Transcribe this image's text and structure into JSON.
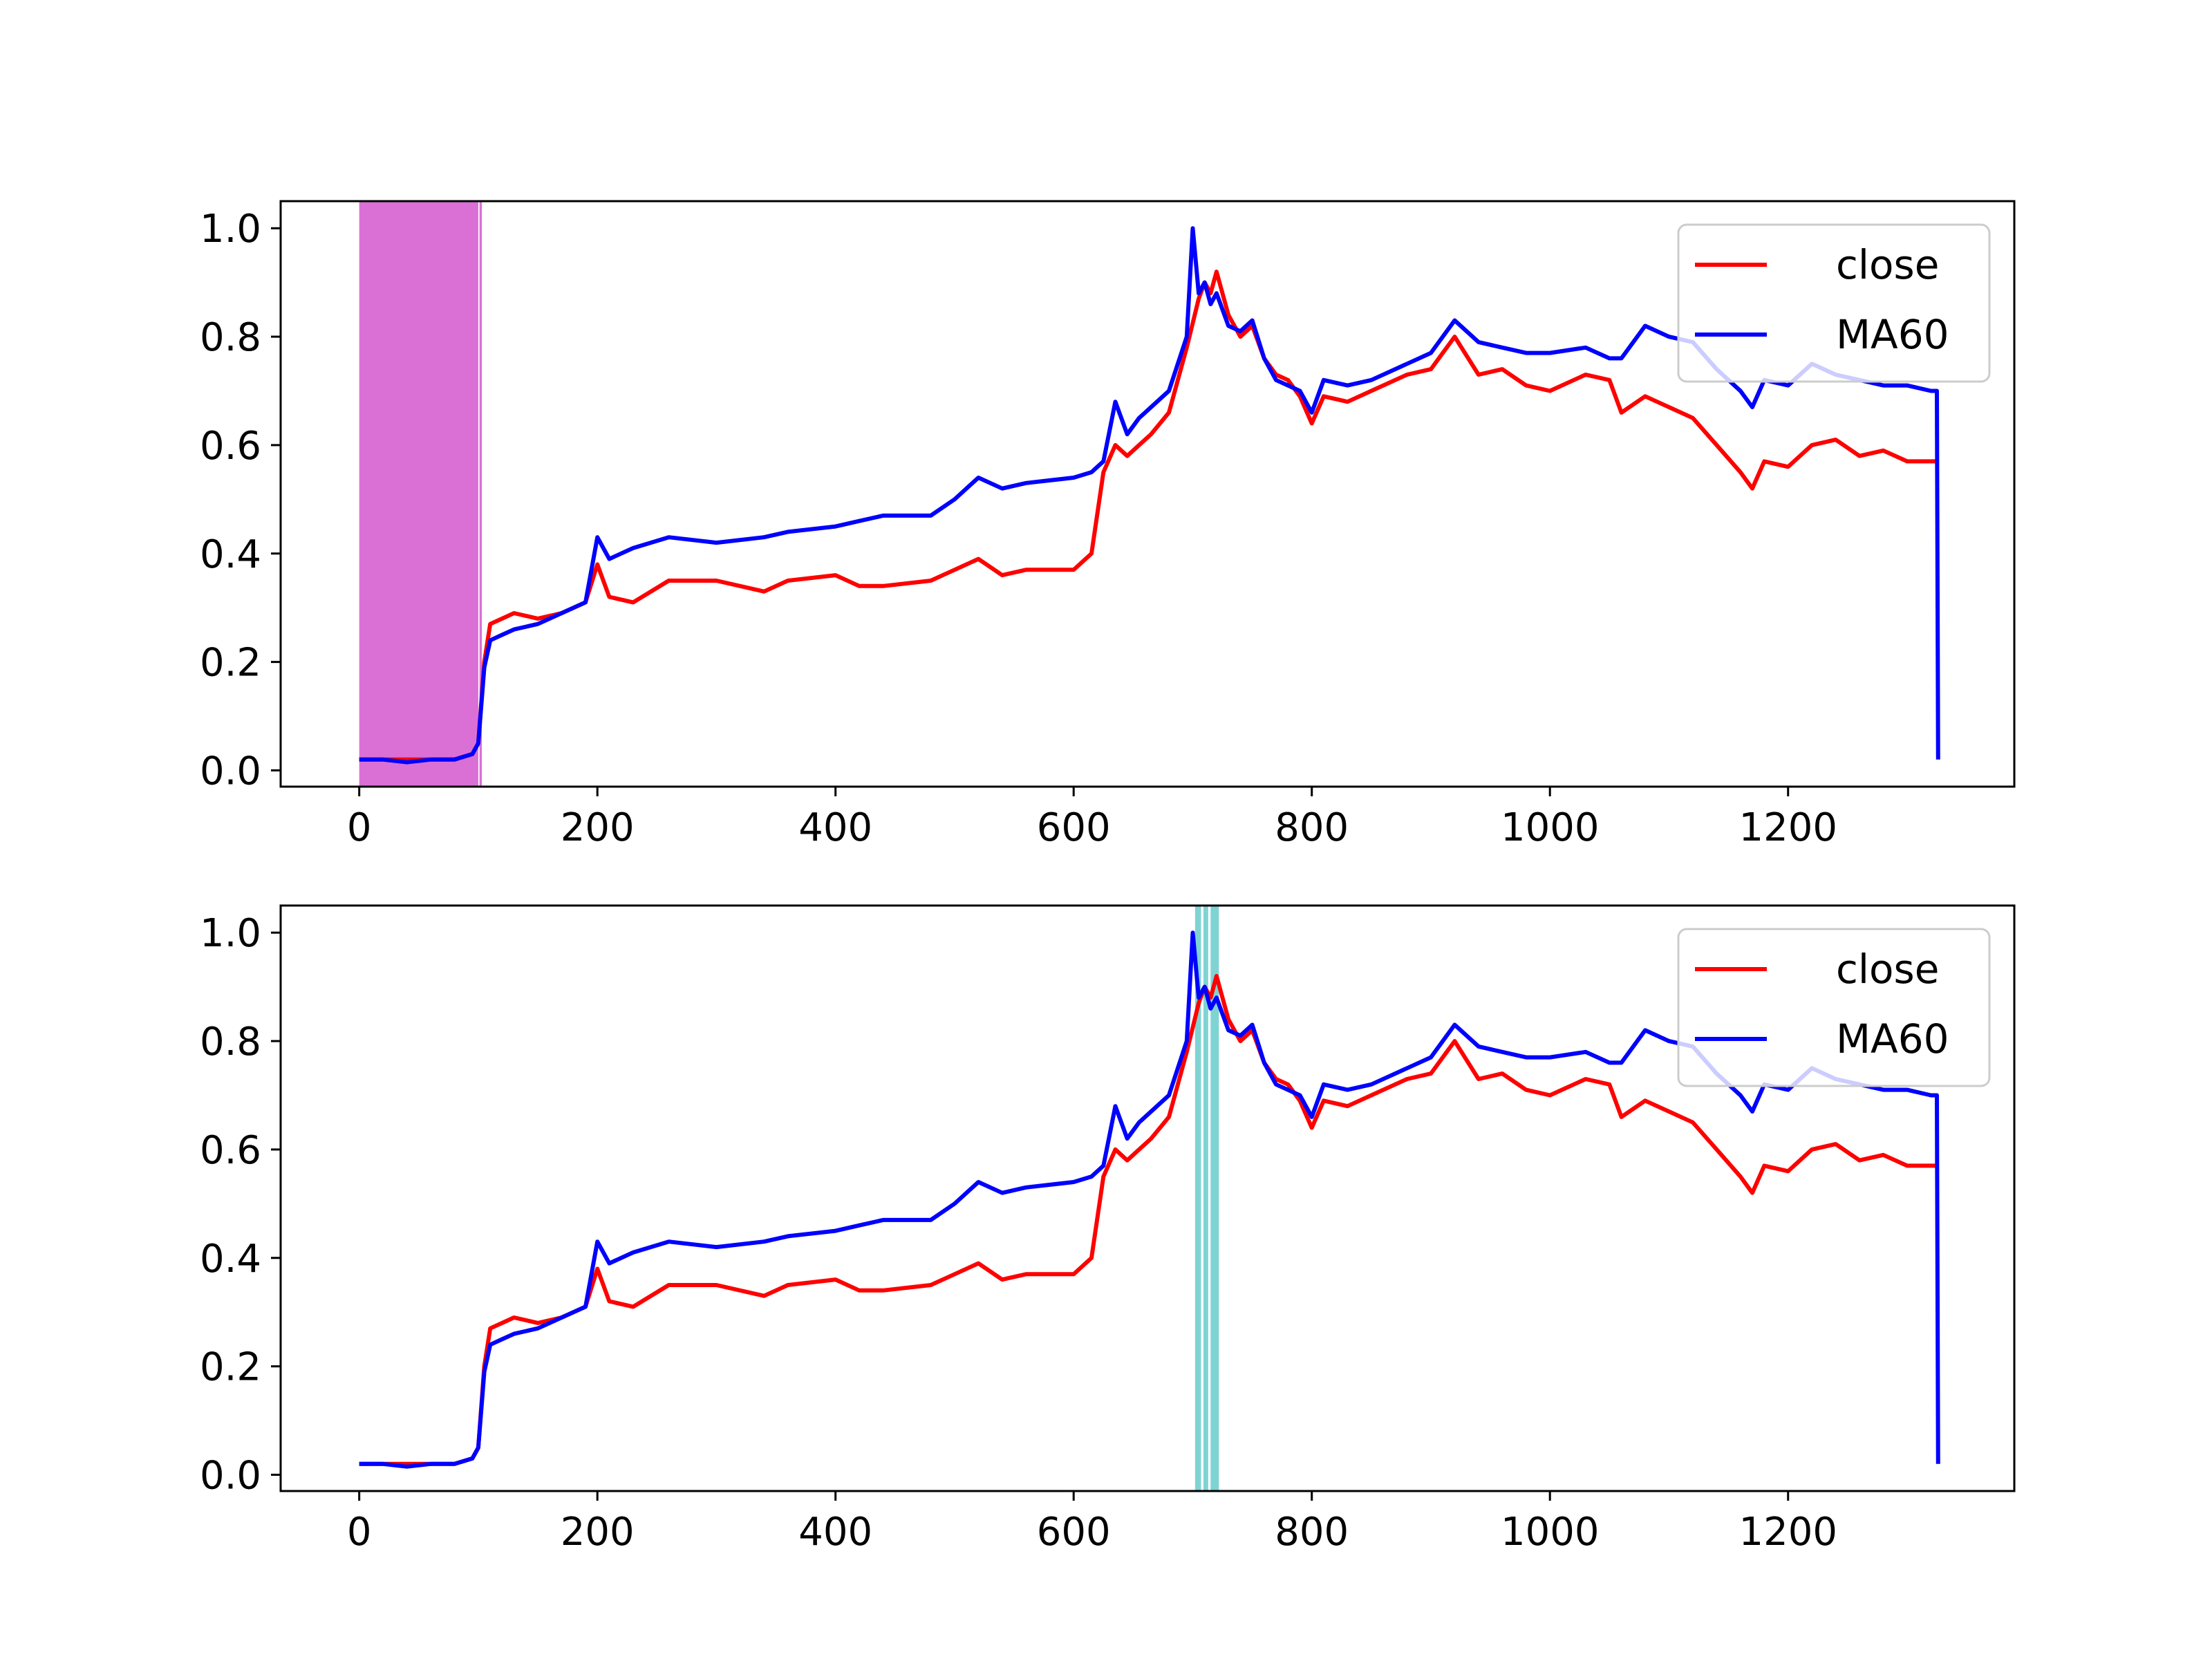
{
  "chart_data": [
    {
      "type": "line",
      "title": "",
      "xlabel": "",
      "ylabel": "",
      "xlim": [
        -66,
        1390
      ],
      "ylim": [
        -0.03,
        1.05
      ],
      "xticks": [
        0,
        200,
        400,
        600,
        800,
        1000,
        1200
      ],
      "xtick_labels": [
        "0",
        "200",
        "400",
        "600",
        "800",
        "1000",
        "1200"
      ],
      "yticks": [
        0.0,
        0.2,
        0.4,
        0.6,
        0.8,
        1.0
      ],
      "ytick_labels": [
        "0.0",
        "0.2",
        "0.4",
        "0.6",
        "0.8",
        "1.0"
      ],
      "legend": {
        "placement": "upper-right",
        "entries": [
          "close",
          "MA60"
        ]
      },
      "grid": false,
      "shaded_regions": [
        {
          "color": "#da70d6",
          "x0": 0,
          "x1": 100
        },
        {
          "color": "#da70d6",
          "x0": 101,
          "x1": 103
        }
      ],
      "series": [
        {
          "name": "close",
          "color": "#ff0000",
          "x": [
            0,
            20,
            40,
            60,
            80,
            95,
            100,
            105,
            110,
            120,
            130,
            150,
            170,
            190,
            200,
            210,
            230,
            260,
            300,
            340,
            360,
            400,
            420,
            440,
            480,
            500,
            520,
            540,
            560,
            600,
            615,
            625,
            635,
            645,
            655,
            665,
            680,
            695,
            705,
            710,
            715,
            720,
            730,
            740,
            750,
            760,
            770,
            780,
            790,
            800,
            810,
            830,
            850,
            880,
            900,
            920,
            940,
            960,
            980,
            1000,
            1030,
            1050,
            1060,
            1080,
            1100,
            1120,
            1140,
            1160,
            1170,
            1180,
            1200,
            1220,
            1240,
            1260,
            1280,
            1300,
            1320,
            1325
          ],
          "y": [
            0.02,
            0.02,
            0.02,
            0.02,
            0.02,
            0.03,
            0.05,
            0.2,
            0.27,
            0.28,
            0.29,
            0.28,
            0.29,
            0.31,
            0.38,
            0.32,
            0.31,
            0.35,
            0.35,
            0.33,
            0.35,
            0.36,
            0.34,
            0.34,
            0.35,
            0.37,
            0.39,
            0.36,
            0.37,
            0.37,
            0.4,
            0.55,
            0.6,
            0.58,
            0.6,
            0.62,
            0.66,
            0.78,
            0.87,
            0.9,
            0.88,
            0.92,
            0.84,
            0.8,
            0.82,
            0.76,
            0.73,
            0.72,
            0.69,
            0.64,
            0.69,
            0.68,
            0.7,
            0.73,
            0.74,
            0.8,
            0.73,
            0.74,
            0.71,
            0.7,
            0.73,
            0.72,
            0.66,
            0.69,
            0.67,
            0.65,
            0.6,
            0.55,
            0.52,
            0.57,
            0.56,
            0.6,
            0.61,
            0.58,
            0.59,
            0.57,
            0.57,
            0.57
          ]
        },
        {
          "name": "MA60",
          "color": "#0000ff",
          "x": [
            0,
            20,
            40,
            60,
            80,
            95,
            100,
            105,
            110,
            120,
            130,
            150,
            170,
            190,
            200,
            210,
            230,
            260,
            300,
            340,
            360,
            400,
            420,
            440,
            480,
            500,
            520,
            540,
            560,
            600,
            615,
            625,
            635,
            645,
            655,
            665,
            680,
            695,
            700,
            705,
            710,
            715,
            720,
            730,
            740,
            750,
            760,
            770,
            780,
            790,
            800,
            810,
            830,
            850,
            880,
            900,
            920,
            940,
            960,
            980,
            1000,
            1030,
            1050,
            1060,
            1080,
            1100,
            1120,
            1140,
            1160,
            1170,
            1180,
            1200,
            1220,
            1240,
            1260,
            1280,
            1300,
            1320,
            1325,
            1326
          ],
          "y": [
            0.02,
            0.02,
            0.015,
            0.02,
            0.02,
            0.03,
            0.05,
            0.19,
            0.24,
            0.25,
            0.26,
            0.27,
            0.29,
            0.31,
            0.43,
            0.39,
            0.41,
            0.43,
            0.42,
            0.43,
            0.44,
            0.45,
            0.46,
            0.47,
            0.47,
            0.5,
            0.54,
            0.52,
            0.53,
            0.54,
            0.55,
            0.57,
            0.68,
            0.62,
            0.65,
            0.67,
            0.7,
            0.8,
            1.0,
            0.88,
            0.9,
            0.86,
            0.88,
            0.82,
            0.81,
            0.83,
            0.76,
            0.72,
            0.71,
            0.7,
            0.66,
            0.72,
            0.71,
            0.72,
            0.75,
            0.77,
            0.83,
            0.79,
            0.78,
            0.77,
            0.77,
            0.78,
            0.76,
            0.76,
            0.82,
            0.8,
            0.79,
            0.74,
            0.7,
            0.67,
            0.72,
            0.71,
            0.75,
            0.73,
            0.72,
            0.71,
            0.71,
            0.7,
            0.7,
            0.02
          ]
        }
      ]
    },
    {
      "type": "line",
      "title": "",
      "xlabel": "",
      "ylabel": "",
      "xlim": [
        -66,
        1390
      ],
      "ylim": [
        -0.03,
        1.05
      ],
      "xticks": [
        0,
        200,
        400,
        600,
        800,
        1000,
        1200
      ],
      "xtick_labels": [
        "0",
        "200",
        "400",
        "600",
        "800",
        "1000",
        "1200"
      ],
      "yticks": [
        0.0,
        0.2,
        0.4,
        0.6,
        0.8,
        1.0
      ],
      "ytick_labels": [
        "0.0",
        "0.2",
        "0.4",
        "0.6",
        "0.8",
        "1.0"
      ],
      "legend": {
        "placement": "upper-right",
        "entries": [
          "close",
          "MA60"
        ]
      },
      "grid": false,
      "shaded_regions": [
        {
          "color": "#7fd3d3",
          "x0": 702,
          "x1": 707
        },
        {
          "color": "#7fd3d3",
          "x0": 709,
          "x1": 713
        },
        {
          "color": "#7fd3d3",
          "x0": 715,
          "x1": 722
        }
      ],
      "series": [
        {
          "name": "close",
          "color": "#ff0000",
          "x": [
            0,
            20,
            40,
            60,
            80,
            95,
            100,
            105,
            110,
            120,
            130,
            150,
            170,
            190,
            200,
            210,
            230,
            260,
            300,
            340,
            360,
            400,
            420,
            440,
            480,
            500,
            520,
            540,
            560,
            600,
            615,
            625,
            635,
            645,
            655,
            665,
            680,
            695,
            705,
            710,
            715,
            720,
            730,
            740,
            750,
            760,
            770,
            780,
            790,
            800,
            810,
            830,
            850,
            880,
            900,
            920,
            940,
            960,
            980,
            1000,
            1030,
            1050,
            1060,
            1080,
            1100,
            1120,
            1140,
            1160,
            1170,
            1180,
            1200,
            1220,
            1240,
            1260,
            1280,
            1300,
            1320,
            1325
          ],
          "y": [
            0.02,
            0.02,
            0.02,
            0.02,
            0.02,
            0.03,
            0.05,
            0.2,
            0.27,
            0.28,
            0.29,
            0.28,
            0.29,
            0.31,
            0.38,
            0.32,
            0.31,
            0.35,
            0.35,
            0.33,
            0.35,
            0.36,
            0.34,
            0.34,
            0.35,
            0.37,
            0.39,
            0.36,
            0.37,
            0.37,
            0.4,
            0.55,
            0.6,
            0.58,
            0.6,
            0.62,
            0.66,
            0.78,
            0.87,
            0.9,
            0.88,
            0.92,
            0.84,
            0.8,
            0.82,
            0.76,
            0.73,
            0.72,
            0.69,
            0.64,
            0.69,
            0.68,
            0.7,
            0.73,
            0.74,
            0.8,
            0.73,
            0.74,
            0.71,
            0.7,
            0.73,
            0.72,
            0.66,
            0.69,
            0.67,
            0.65,
            0.6,
            0.55,
            0.52,
            0.57,
            0.56,
            0.6,
            0.61,
            0.58,
            0.59,
            0.57,
            0.57,
            0.57
          ]
        },
        {
          "name": "MA60",
          "color": "#0000ff",
          "x": [
            0,
            20,
            40,
            60,
            80,
            95,
            100,
            105,
            110,
            120,
            130,
            150,
            170,
            190,
            200,
            210,
            230,
            260,
            300,
            340,
            360,
            400,
            420,
            440,
            480,
            500,
            520,
            540,
            560,
            600,
            615,
            625,
            635,
            645,
            655,
            665,
            680,
            695,
            700,
            705,
            710,
            715,
            720,
            730,
            740,
            750,
            760,
            770,
            780,
            790,
            800,
            810,
            830,
            850,
            880,
            900,
            920,
            940,
            960,
            980,
            1000,
            1030,
            1050,
            1060,
            1080,
            1100,
            1120,
            1140,
            1160,
            1170,
            1180,
            1200,
            1220,
            1240,
            1260,
            1280,
            1300,
            1320,
            1325,
            1326
          ],
          "y": [
            0.02,
            0.02,
            0.015,
            0.02,
            0.02,
            0.03,
            0.05,
            0.19,
            0.24,
            0.25,
            0.26,
            0.27,
            0.29,
            0.31,
            0.43,
            0.39,
            0.41,
            0.43,
            0.42,
            0.43,
            0.44,
            0.45,
            0.46,
            0.47,
            0.47,
            0.5,
            0.54,
            0.52,
            0.53,
            0.54,
            0.55,
            0.57,
            0.68,
            0.62,
            0.65,
            0.67,
            0.7,
            0.8,
            1.0,
            0.88,
            0.9,
            0.86,
            0.88,
            0.82,
            0.81,
            0.83,
            0.76,
            0.72,
            0.71,
            0.7,
            0.66,
            0.72,
            0.71,
            0.72,
            0.75,
            0.77,
            0.83,
            0.79,
            0.78,
            0.77,
            0.77,
            0.78,
            0.76,
            0.76,
            0.82,
            0.8,
            0.79,
            0.74,
            0.7,
            0.67,
            0.72,
            0.71,
            0.75,
            0.73,
            0.72,
            0.71,
            0.71,
            0.7,
            0.7,
            0.02
          ]
        }
      ]
    }
  ]
}
